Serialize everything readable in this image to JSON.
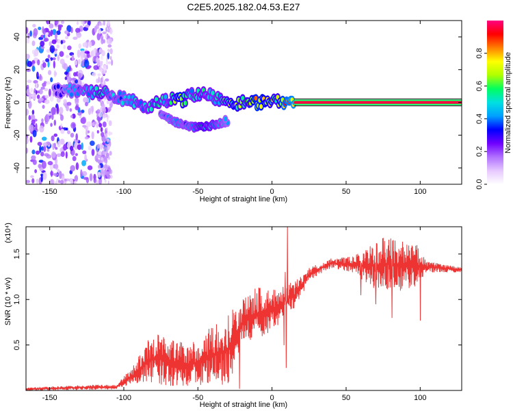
{
  "title": "C2E5.2025.182.04.53.E27",
  "chart_data": [
    {
      "type": "heatmap",
      "xlabel": "Height of straight line (km)",
      "ylabel": "Frequency (Hz)",
      "xlim": [
        -166,
        128
      ],
      "ylim": [
        -50,
        50
      ],
      "xticks": [
        "-150",
        "-100",
        "-50",
        "0",
        "50",
        "100"
      ],
      "yticks": [
        "-40",
        "-20",
        "0",
        "20",
        "40"
      ],
      "colorbar": {
        "label": "Normalized spectral amplitude",
        "range": [
          0,
          1
        ],
        "ticks": [
          "0.0",
          "0.2",
          "0.4",
          "0.6",
          "0.8"
        ],
        "colors": [
          "#ffffff",
          "#e6c8ff",
          "#b070ff",
          "#7000ff",
          "#0000ff",
          "#00a0ff",
          "#00e0e0",
          "#00ff60",
          "#b0ff00",
          "#ffff00",
          "#ff8000",
          "#ff0000",
          "#ff0080"
        ]
      },
      "trace": [
        {
          "x": -147,
          "y": 8,
          "amp": 0.35
        },
        {
          "x": -138,
          "y": 7,
          "amp": 0.4
        },
        {
          "x": -130,
          "y": 7,
          "amp": 0.45
        },
        {
          "x": -122,
          "y": 6,
          "amp": 0.5
        },
        {
          "x": -115,
          "y": 6,
          "amp": 0.55
        },
        {
          "x": -108,
          "y": 4,
          "amp": 0.45
        },
        {
          "x": -100,
          "y": 2,
          "amp": 0.45
        },
        {
          "x": -92,
          "y": 0,
          "amp": 0.5
        },
        {
          "x": -85,
          "y": -2,
          "amp": 0.5
        },
        {
          "x": -78,
          "y": -1,
          "amp": 0.55
        },
        {
          "x": -70,
          "y": 2,
          "amp": 0.5
        },
        {
          "x": -62,
          "y": 1,
          "amp": 0.75
        },
        {
          "x": -55,
          "y": 4,
          "amp": 0.5
        },
        {
          "x": -48,
          "y": 6,
          "amp": 0.55
        },
        {
          "x": -40,
          "y": 4,
          "amp": 0.5
        },
        {
          "x": -33,
          "y": 0,
          "amp": 0.55
        },
        {
          "x": -26,
          "y": -1,
          "amp": 0.7
        },
        {
          "x": -18,
          "y": 0,
          "amp": 0.6
        },
        {
          "x": -10,
          "y": 0,
          "amp": 0.8
        },
        {
          "x": -3,
          "y": 1,
          "amp": 0.7
        },
        {
          "x": 3,
          "y": 2,
          "amp": 0.6
        },
        {
          "x": 8,
          "y": 0,
          "amp": 0.85
        },
        {
          "x": 20,
          "y": 0,
          "amp": 0.95
        },
        {
          "x": 50,
          "y": 0,
          "amp": 0.95
        },
        {
          "x": 80,
          "y": 0,
          "amp": 0.95
        },
        {
          "x": 100,
          "y": 0,
          "amp": 0.9
        },
        {
          "x": 128,
          "y": 0,
          "amp": 0.95
        }
      ],
      "branch": [
        {
          "x": -75,
          "y": -7,
          "amp": 0.4
        },
        {
          "x": -65,
          "y": -12,
          "amp": 0.45
        },
        {
          "x": -55,
          "y": -15,
          "amp": 0.45
        },
        {
          "x": -46,
          "y": -15,
          "amp": 0.6
        },
        {
          "x": -30,
          "y": -12,
          "amp": 0.4
        },
        {
          "x": -33,
          "y": -8,
          "amp": 0.4
        }
      ]
    },
    {
      "type": "line",
      "xlabel": "Height of straight line (km)",
      "ylabel": "SNR (10 * v/v)",
      "yscale_label": "(x10⁴)",
      "xlim": [
        -166,
        128
      ],
      "ylim": [
        0,
        1.8
      ],
      "xticks": [
        "-150",
        "-100",
        "-50",
        "0",
        "50",
        "100"
      ],
      "yticks": [
        "0.5",
        "1.0",
        "1.5"
      ],
      "color": "#ee3333",
      "envelope": [
        {
          "x": -166,
          "low": 0.0,
          "high": 0.03
        },
        {
          "x": -120,
          "low": 0.01,
          "high": 0.06
        },
        {
          "x": -105,
          "low": 0.01,
          "high": 0.06
        },
        {
          "x": -100,
          "low": 0.05,
          "high": 0.15
        },
        {
          "x": -92,
          "low": 0.05,
          "high": 0.3
        },
        {
          "x": -85,
          "low": 0.1,
          "high": 0.55
        },
        {
          "x": -75,
          "low": 0.05,
          "high": 0.65
        },
        {
          "x": -65,
          "low": 0.05,
          "high": 0.55
        },
        {
          "x": -55,
          "low": 0.05,
          "high": 0.5
        },
        {
          "x": -45,
          "low": 0.05,
          "high": 0.65
        },
        {
          "x": -35,
          "low": 0.05,
          "high": 0.75
        },
        {
          "x": -25,
          "low": 0.1,
          "high": 0.95
        },
        {
          "x": -22,
          "low": 0.45,
          "high": 1.0
        },
        {
          "x": -15,
          "low": 0.55,
          "high": 1.05
        },
        {
          "x": -10,
          "low": 0.55,
          "high": 1.15
        },
        {
          "x": 0,
          "low": 0.65,
          "high": 1.1
        },
        {
          "x": 15,
          "low": 0.9,
          "high": 1.2
        },
        {
          "x": 25,
          "low": 1.2,
          "high": 1.35
        },
        {
          "x": 40,
          "low": 1.35,
          "high": 1.45
        },
        {
          "x": 55,
          "low": 1.3,
          "high": 1.47
        },
        {
          "x": 62,
          "low": 1.2,
          "high": 1.55
        },
        {
          "x": 70,
          "low": 1.1,
          "high": 1.65
        },
        {
          "x": 80,
          "low": 1.1,
          "high": 1.7
        },
        {
          "x": 90,
          "low": 1.1,
          "high": 1.65
        },
        {
          "x": 98,
          "low": 1.15,
          "high": 1.6
        },
        {
          "x": 104,
          "low": 1.3,
          "high": 1.42
        },
        {
          "x": 128,
          "low": 1.3,
          "high": 1.35
        }
      ],
      "spikes": [
        {
          "x": 8,
          "y": 0.5
        },
        {
          "x": 9,
          "y": 1.3
        },
        {
          "x": 9.5,
          "y": 0.25
        },
        {
          "x": 10.5,
          "y": 1.8
        },
        {
          "x": -22,
          "y": 0.02
        },
        {
          "x": 60,
          "y": 1.05
        },
        {
          "x": 70,
          "y": 0.95
        },
        {
          "x": 81,
          "y": 0.8
        },
        {
          "x": 100,
          "y": 0.77
        }
      ]
    }
  ]
}
